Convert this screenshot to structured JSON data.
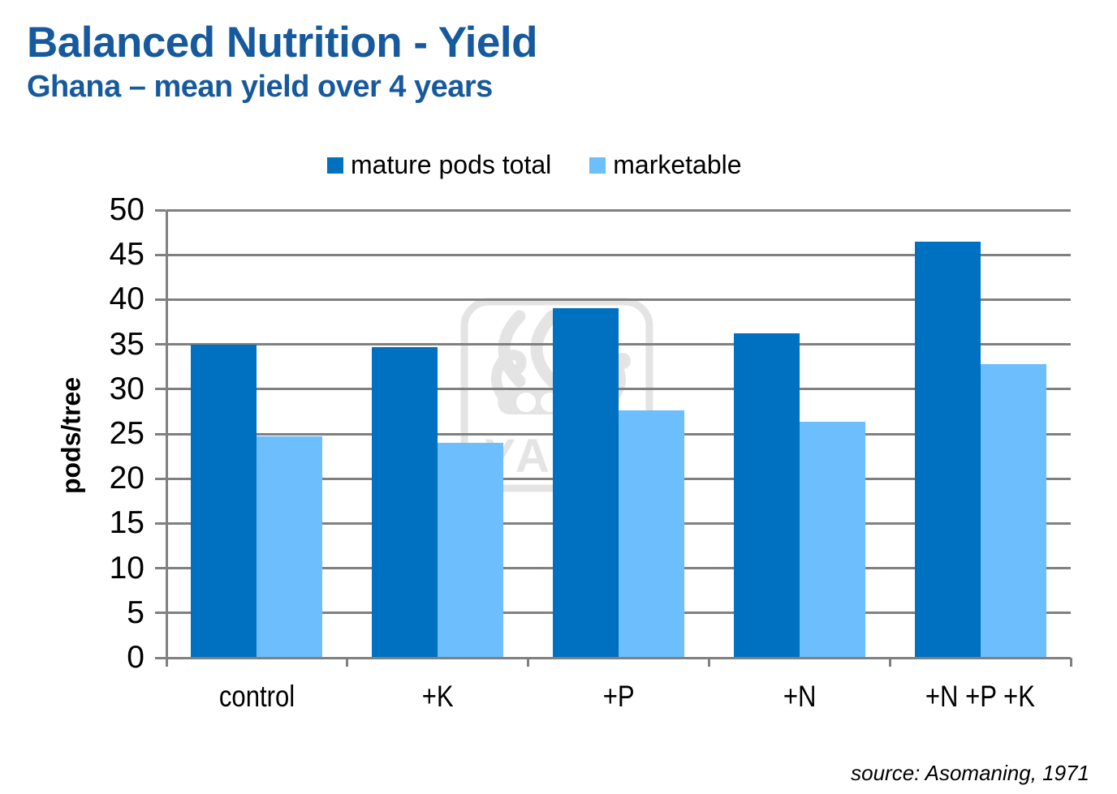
{
  "header": {
    "title": "Balanced Nutrition - Yield",
    "subtitle": "Ghana – mean yield over 4 years"
  },
  "chart_data": {
    "type": "bar",
    "categories": [
      "control",
      "+K",
      "+P",
      "+N",
      "+N +P +K"
    ],
    "series": [
      {
        "name": "mature pods total",
        "color": "#0070C0",
        "values": [
          35,
          34.7,
          39,
          36.2,
          46.5
        ]
      },
      {
        "name": "marketable",
        "color": "#6CBEFC",
        "values": [
          24.7,
          24,
          27.6,
          26.4,
          32.8
        ]
      }
    ],
    "title": "",
    "xlabel": "",
    "ylabel": "pods/tree",
    "ylim": [
      0,
      50
    ],
    "ystep": 5,
    "yticks": [
      0,
      5,
      10,
      15,
      20,
      25,
      30,
      35,
      40,
      45,
      50
    ],
    "grid": true,
    "legend_position": "top-center"
  },
  "watermark": {
    "text": "YARA"
  },
  "footer": {
    "source": "source: Asomaning, 1971"
  },
  "colors": {
    "title_blue": "#16599D",
    "grid_gray": "#808080",
    "watermark_gray": "#E4E4E4",
    "series1": "#0070C0",
    "series2": "#6CBEFC"
  }
}
